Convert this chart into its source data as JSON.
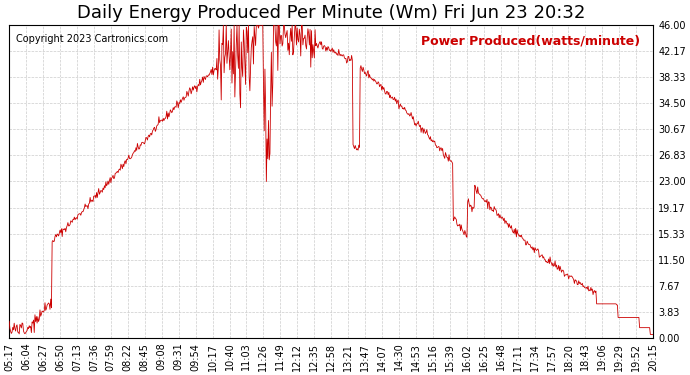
{
  "title": "Daily Energy Produced Per Minute (Wm) Fri Jun 23 20:32",
  "legend_label": "Power Produced(watts/minute)",
  "copyright": "Copyright 2023 Cartronics.com",
  "line_color": "#cc0000",
  "background_color": "#ffffff",
  "grid_color": "#cccccc",
  "ylim": [
    0,
    46.0
  ],
  "yticks": [
    0.0,
    3.83,
    7.67,
    11.5,
    15.33,
    19.17,
    23.0,
    26.83,
    30.67,
    34.5,
    38.33,
    42.17,
    46.0
  ],
  "xtick_labels": [
    "05:17",
    "06:04",
    "06:27",
    "06:50",
    "07:13",
    "07:36",
    "07:59",
    "08:22",
    "08:45",
    "09:08",
    "09:31",
    "09:54",
    "10:17",
    "10:40",
    "11:03",
    "11:26",
    "11:49",
    "12:12",
    "12:35",
    "12:58",
    "13:21",
    "13:47",
    "14:07",
    "14:30",
    "14:53",
    "15:16",
    "15:39",
    "16:02",
    "16:25",
    "16:48",
    "17:11",
    "17:34",
    "17:57",
    "18:20",
    "18:43",
    "19:06",
    "19:29",
    "19:52",
    "20:15"
  ],
  "title_fontsize": 13,
  "axis_fontsize": 7,
  "copyright_fontsize": 7,
  "legend_fontsize": 9
}
